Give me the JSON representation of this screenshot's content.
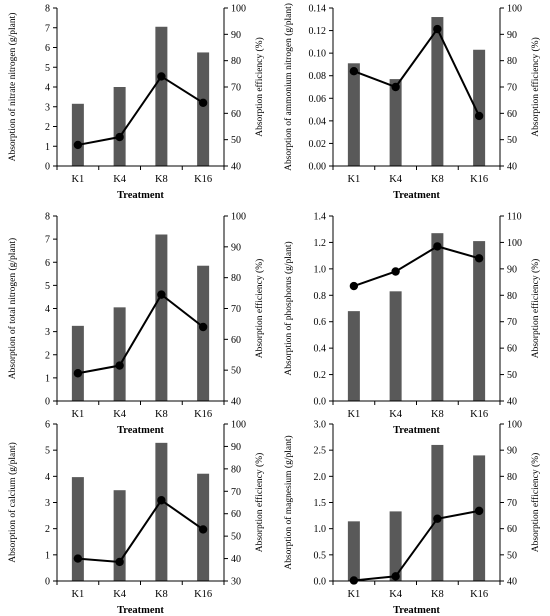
{
  "chart_data": [
    {
      "type": "bar",
      "categories": [
        "K1",
        "K4",
        "K8",
        "K16"
      ],
      "series": [
        {
          "type": "bar",
          "axis": "left",
          "values": [
            3.15,
            4.0,
            7.05,
            5.75
          ],
          "color": "#595959"
        },
        {
          "type": "line",
          "axis": "right",
          "values": [
            48,
            51,
            74,
            64
          ],
          "color": "#000000"
        }
      ],
      "xlabel": "Treatment",
      "ylabel": "Absorption of nitrate nitrogen (g/plant)",
      "y2label": "Absorption efficiency (%)",
      "ylim": [
        0,
        8
      ],
      "yticks": [
        0,
        1,
        2,
        3,
        4,
        5,
        6,
        7,
        8
      ],
      "y2lim": [
        40,
        100
      ],
      "y2ticks": [
        40,
        50,
        60,
        70,
        80,
        90,
        100
      ]
    },
    {
      "type": "bar",
      "categories": [
        "K1",
        "K4",
        "K8",
        "K16"
      ],
      "series": [
        {
          "type": "bar",
          "axis": "left",
          "values": [
            0.091,
            0.077,
            0.132,
            0.103
          ],
          "color": "#595959"
        },
        {
          "type": "line",
          "axis": "right",
          "values": [
            76,
            70,
            92,
            59
          ],
          "color": "#000000"
        }
      ],
      "xlabel": "Treatment",
      "ylabel": "Absorption of ammonium nitrogen (g/plant)",
      "y2label": "Absorption efficiency (%)",
      "ylim": [
        0,
        0.14
      ],
      "yticks": [
        "0.00",
        "0.02",
        "0.04",
        "0.06",
        "0.08",
        "0.10",
        "0.12",
        "0.14"
      ],
      "y2lim": [
        40,
        100
      ],
      "y2ticks": [
        40,
        50,
        60,
        70,
        80,
        90,
        100
      ]
    },
    {
      "type": "bar",
      "categories": [
        "K1",
        "K4",
        "K8",
        "K16"
      ],
      "series": [
        {
          "type": "bar",
          "axis": "left",
          "values": [
            3.25,
            4.05,
            7.2,
            5.85
          ],
          "color": "#595959"
        },
        {
          "type": "line",
          "axis": "right",
          "values": [
            49,
            51.5,
            74.5,
            64
          ],
          "color": "#000000"
        }
      ],
      "xlabel": "Treatment",
      "ylabel": "Absorption of total nitrogen (g/plant)",
      "y2label": "Absorption efficiency (%)",
      "ylim": [
        0,
        8
      ],
      "yticks": [
        0,
        1,
        2,
        3,
        4,
        5,
        6,
        7,
        8
      ],
      "y2lim": [
        40,
        100
      ],
      "y2ticks": [
        40,
        50,
        60,
        70,
        80,
        90,
        100
      ]
    },
    {
      "type": "bar",
      "categories": [
        "K1",
        "K4",
        "K8",
        "K16"
      ],
      "series": [
        {
          "type": "bar",
          "axis": "left",
          "values": [
            0.68,
            0.83,
            1.27,
            1.21
          ],
          "color": "#595959"
        },
        {
          "type": "line",
          "axis": "right",
          "values": [
            83.5,
            89,
            98.5,
            94
          ],
          "color": "#000000"
        }
      ],
      "xlabel": "Treatment",
      "ylabel": "Absorption of phosphorus (g/plant)",
      "y2label": "Absorption efficiency (%)",
      "ylim": [
        0,
        1.4
      ],
      "yticks": [
        "0.0",
        "0.2",
        "0.4",
        "0.6",
        "0.8",
        "1.0",
        "1.2",
        "1.4"
      ],
      "y2lim": [
        40,
        110
      ],
      "y2ticks": [
        40,
        50,
        60,
        70,
        80,
        90,
        100,
        110
      ]
    },
    {
      "type": "bar",
      "categories": [
        "K1",
        "K4",
        "K8",
        "K16"
      ],
      "series": [
        {
          "type": "bar",
          "axis": "left",
          "values": [
            3.97,
            3.47,
            5.28,
            4.1
          ],
          "color": "#595959"
        },
        {
          "type": "line",
          "axis": "right",
          "values": [
            40,
            38.5,
            66,
            53
          ],
          "color": "#000000"
        }
      ],
      "xlabel": "Treatment",
      "ylabel": "Absorption of calcium (g/plant)",
      "y2label": "Absorption efficiency (%)",
      "ylim": [
        0,
        6
      ],
      "yticks": [
        0,
        1,
        2,
        3,
        4,
        5,
        6
      ],
      "y2lim": [
        30,
        100
      ],
      "y2ticks": [
        30,
        40,
        50,
        60,
        70,
        80,
        90,
        100
      ]
    },
    {
      "type": "bar",
      "categories": [
        "K1",
        "K4",
        "K8",
        "K16"
      ],
      "series": [
        {
          "type": "bar",
          "axis": "left",
          "values": [
            1.14,
            1.33,
            2.6,
            2.4
          ],
          "color": "#595959"
        },
        {
          "type": "line",
          "axis": "right",
          "values": [
            40.2,
            41.8,
            63.8,
            66.8
          ],
          "color": "#000000"
        }
      ],
      "xlabel": "Treatment",
      "ylabel": "Absorption of magnesium (g/plant)",
      "y2label": "Absorption efficiency (%)",
      "ylim": [
        0,
        3.0
      ],
      "yticks": [
        "0.0",
        "0.5",
        "1.0",
        "1.5",
        "2.0",
        "2.5",
        "3.0"
      ],
      "y2lim": [
        40,
        100
      ],
      "y2ticks": [
        40,
        50,
        60,
        70,
        80,
        90,
        100
      ]
    }
  ]
}
